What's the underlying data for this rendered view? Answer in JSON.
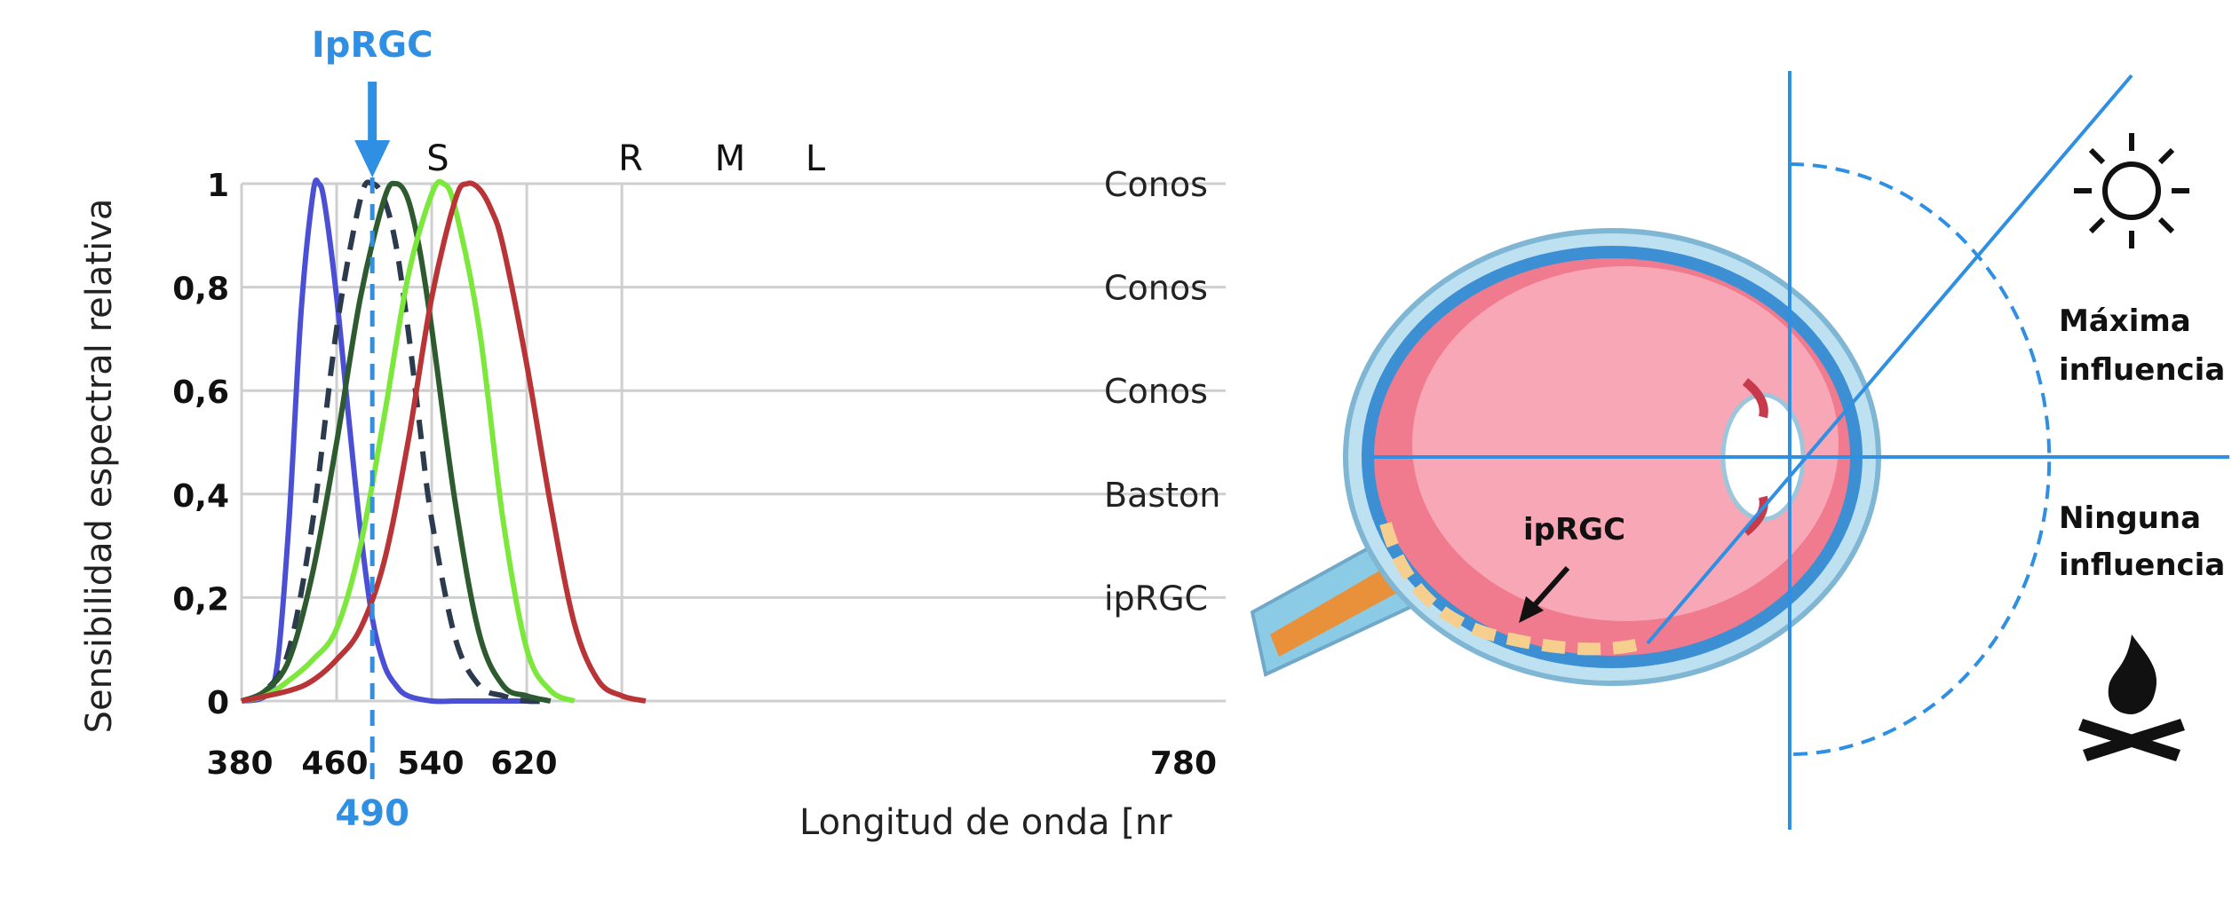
{
  "chart_data": {
    "type": "line",
    "xlabel": "Longitud de onda [nr",
    "ylabel": "Sensibilidad espectral relativa",
    "xlim": [
      380,
      780
    ],
    "ylim": [
      0,
      1
    ],
    "x_ticks": [
      "380",
      "460",
      "540",
      "620",
      "780"
    ],
    "y_ticks": [
      "0",
      "0,2",
      "0,4",
      "0,6",
      "0,8",
      "1"
    ],
    "y_tick_values": [
      0,
      0.2,
      0.4,
      0.6,
      0.8,
      1.0
    ],
    "grid": true,
    "right_labels": [
      "Conos",
      "Conos",
      "Conos",
      "Baston",
      "ipRGC"
    ],
    "marker": {
      "label": "IpRGC",
      "value": "490",
      "x": 490
    },
    "series": [
      {
        "name": "S",
        "color": "#4a4fd4",
        "style": "solid",
        "x": [
          380,
          400,
          410,
          420,
          430,
          440,
          445,
          450,
          460,
          470,
          480,
          490,
          500,
          510,
          520,
          540,
          560,
          580,
          620
        ],
        "y": [
          0.0,
          0.01,
          0.07,
          0.35,
          0.75,
          0.98,
          1.0,
          0.96,
          0.78,
          0.55,
          0.33,
          0.16,
          0.07,
          0.03,
          0.01,
          0.0,
          0.0,
          0.0,
          0.0
        ]
      },
      {
        "name": "",
        "color": "#2c3a4e",
        "style": "dashed",
        "x": [
          380,
          400,
          420,
          440,
          460,
          480,
          490,
          500,
          510,
          520,
          530,
          540,
          560,
          580,
          600,
          620,
          640
        ],
        "y": [
          0.0,
          0.02,
          0.1,
          0.35,
          0.72,
          0.97,
          1.0,
          0.97,
          0.88,
          0.72,
          0.53,
          0.35,
          0.12,
          0.03,
          0.01,
          0.0,
          0.0
        ]
      },
      {
        "name": "R",
        "color": "#2d5a2e",
        "style": "solid",
        "x": [
          380,
          400,
          420,
          440,
          460,
          480,
          500,
          510,
          520,
          530,
          540,
          560,
          580,
          600,
          620,
          640
        ],
        "y": [
          0.0,
          0.02,
          0.08,
          0.25,
          0.5,
          0.78,
          0.97,
          1.0,
          0.97,
          0.87,
          0.72,
          0.38,
          0.13,
          0.03,
          0.01,
          0.0
        ]
      },
      {
        "name": "M",
        "color": "#7de83c",
        "style": "solid",
        "x": [
          380,
          400,
          420,
          440,
          460,
          480,
          500,
          520,
          540,
          550,
          560,
          580,
          600,
          620,
          640,
          660
        ],
        "y": [
          0.0,
          0.01,
          0.04,
          0.08,
          0.14,
          0.3,
          0.55,
          0.82,
          0.98,
          1.0,
          0.95,
          0.72,
          0.35,
          0.1,
          0.02,
          0.0
        ]
      },
      {
        "name": "L",
        "color": "#b83437",
        "style": "solid",
        "x": [
          380,
          420,
          440,
          460,
          480,
          500,
          520,
          540,
          560,
          570,
          580,
          590,
          600,
          620,
          640,
          660,
          680,
          700,
          720
        ],
        "y": [
          0.0,
          0.02,
          0.04,
          0.08,
          0.14,
          0.27,
          0.5,
          0.78,
          0.97,
          1.0,
          0.99,
          0.95,
          0.88,
          0.65,
          0.38,
          0.15,
          0.04,
          0.01,
          0.0
        ]
      }
    ]
  },
  "eye": {
    "label": "ipRGC",
    "zone_max": [
      "Máxima",
      "influencia"
    ],
    "zone_none": [
      "Ninguna",
      "influencia"
    ],
    "icons": [
      "sun-icon",
      "campfire-icon"
    ]
  }
}
